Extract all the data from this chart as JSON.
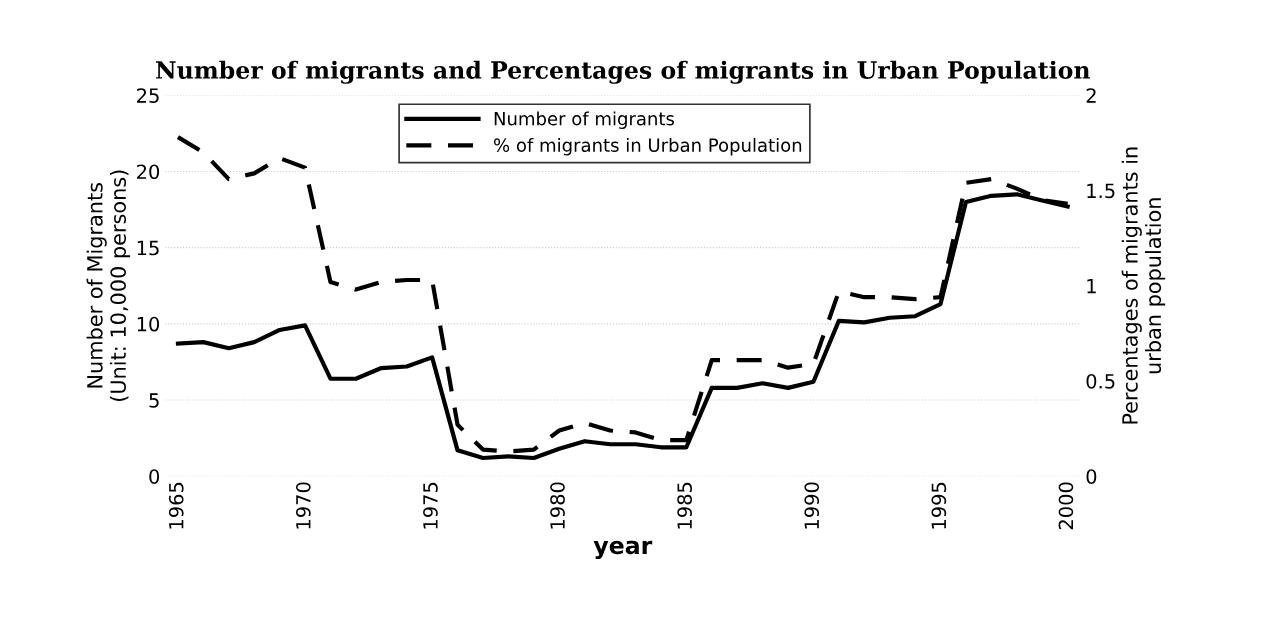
{
  "chart_data": {
    "type": "line",
    "title": "Number of migrants and Percentages of migrants in Urban Population",
    "xlabel": "year",
    "ylabel": "Number of Migrants\n(Unit: 10,000 persons)",
    "y2label": "Percentages of migrants in\nurban population",
    "x": [
      1965,
      1966,
      1967,
      1968,
      1969,
      1970,
      1971,
      1972,
      1973,
      1974,
      1975,
      1976,
      1977,
      1978,
      1979,
      1980,
      1981,
      1982,
      1983,
      1984,
      1985,
      1986,
      1987,
      1988,
      1989,
      1990,
      1991,
      1992,
      1993,
      1994,
      1995,
      1996,
      1997,
      1998,
      1999,
      2000
    ],
    "series": [
      {
        "name": "Number of migrants",
        "color": "#000000",
        "line_style": "solid",
        "values": [
          8.7,
          8.8,
          8.4,
          8.8,
          9.6,
          9.9,
          6.4,
          6.4,
          7.1,
          7.2,
          7.8,
          1.7,
          1.2,
          1.3,
          1.2,
          1.8,
          2.3,
          2.1,
          2.1,
          1.9,
          1.9,
          5.8,
          5.8,
          6.1,
          5.8,
          6.2,
          10.2,
          10.1,
          10.4,
          10.5,
          11.3,
          18.0,
          18.4,
          18.5,
          18.1,
          17.7
        ]
      },
      {
        "name": "% of migrants in Urban Population",
        "color": "#000000",
        "line_style": "dashed",
        "axis": "y2",
        "values": [
          1.78,
          1.7,
          1.56,
          1.59,
          1.67,
          1.62,
          1.02,
          0.98,
          1.02,
          1.03,
          1.03,
          0.27,
          0.14,
          0.13,
          0.14,
          0.24,
          0.28,
          0.24,
          0.23,
          0.19,
          0.19,
          0.61,
          0.61,
          0.61,
          0.57,
          0.59,
          0.97,
          0.94,
          0.94,
          0.93,
          0.94,
          1.54,
          1.56,
          1.51,
          1.45,
          1.43
        ]
      }
    ],
    "xlim": [
      1964.5,
      2000.5
    ],
    "xticks": [
      1965,
      1970,
      1975,
      1980,
      1985,
      1990,
      1995,
      2000
    ],
    "ylim": [
      0,
      25
    ],
    "yticks": [
      0,
      5,
      10,
      15,
      20,
      25
    ],
    "y2lim": [
      0,
      2
    ],
    "y2ticks": [
      0,
      0.5,
      1,
      1.5,
      2
    ],
    "grid": "y",
    "legend": "top"
  }
}
